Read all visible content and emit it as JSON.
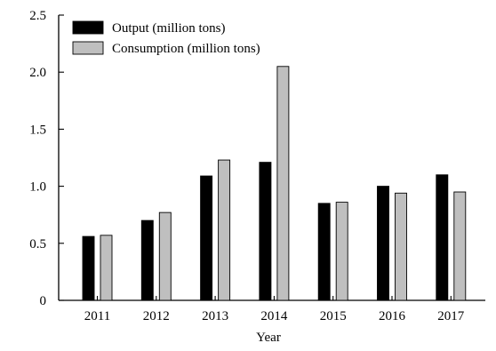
{
  "chart_data": {
    "type": "bar",
    "title": "",
    "xlabel": "Year",
    "ylabel": "",
    "categories": [
      "2011",
      "2012",
      "2013",
      "2014",
      "2015",
      "2016",
      "2017"
    ],
    "series": [
      {
        "name": "Output (million tons)",
        "color": "#000000",
        "values": [
          0.56,
          0.7,
          1.09,
          1.21,
          0.85,
          1.0,
          1.1
        ]
      },
      {
        "name": "Consumption (million tons)",
        "color": "#bfbfbf",
        "values": [
          0.57,
          0.77,
          1.23,
          2.05,
          0.86,
          0.94,
          0.95
        ]
      }
    ],
    "ylim": [
      0,
      2.5
    ],
    "yticks": [
      "0",
      "0.5",
      "1.0",
      "1.5",
      "2.0",
      "2.5"
    ],
    "grid": false,
    "legend_position": "top-left"
  }
}
